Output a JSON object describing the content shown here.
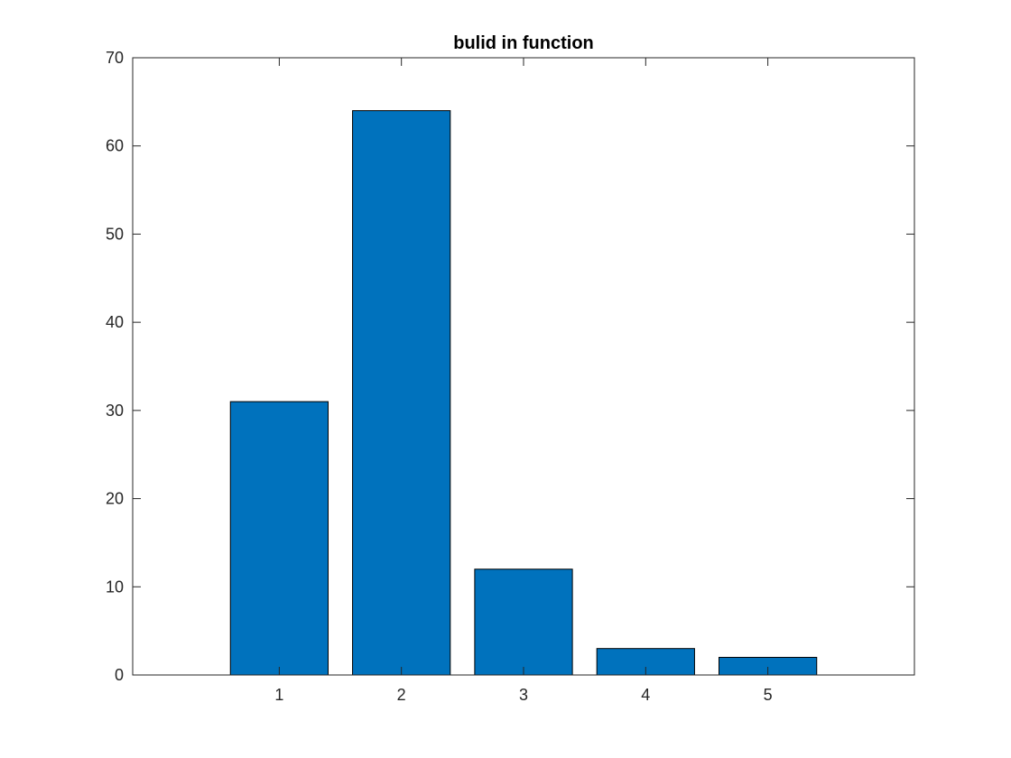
{
  "chart_data": {
    "type": "bar",
    "title": "bulid in function",
    "xlabel": "",
    "ylabel": "",
    "categories": [
      "1",
      "2",
      "3",
      "4",
      "5"
    ],
    "x": [
      1,
      2,
      3,
      4,
      5
    ],
    "values": [
      31,
      64,
      12,
      3,
      2
    ],
    "xlim": [
      -0.2,
      6.2
    ],
    "ylim": [
      0,
      70
    ],
    "yticks": [
      0,
      10,
      20,
      30,
      40,
      50,
      60,
      70
    ],
    "xticks": [
      1,
      2,
      3,
      4,
      5
    ],
    "bar_width": 0.8,
    "grid": false,
    "legend": "none",
    "bar_color": "#0072BD",
    "edge_color": "#000000",
    "axis_color": "#262626"
  }
}
